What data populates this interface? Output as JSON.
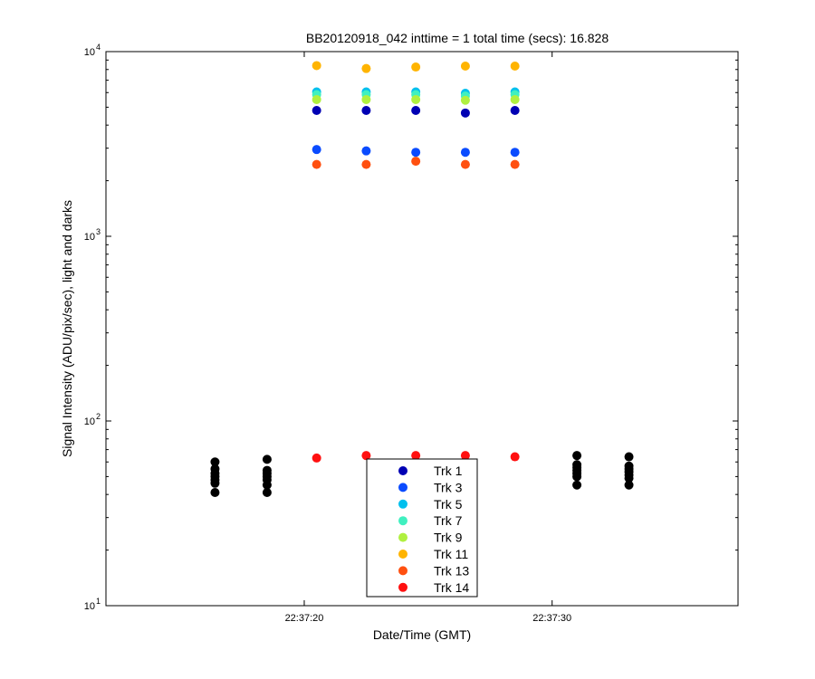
{
  "chart_data": {
    "type": "scatter",
    "title": "BB20120918_042 inttime = 1 total time (secs): 16.828",
    "xlabel": "Date/Time (GMT)",
    "ylabel": "Signal Intensity (ADU/pix/sec), light and darks",
    "yscale": "log",
    "ylim": [
      10,
      10000
    ],
    "xlim": [
      "22:37:12.0",
      "22:37:37.5"
    ],
    "x_ticks": [
      "22:37:20",
      "22:37:30"
    ],
    "y_ticks": [
      {
        "base": "10",
        "exp": "1",
        "value": 10
      },
      {
        "base": "10",
        "exp": "2",
        "value": 100
      },
      {
        "base": "10",
        "exp": "3",
        "value": 1000
      },
      {
        "base": "10",
        "exp": "4",
        "value": 10000
      }
    ],
    "grid": false,
    "legend_position": "bottom-center",
    "series": [
      {
        "name": "Trk 1",
        "color": "#0000b4",
        "x": [
          "22:37:20.5",
          "22:37:22.5",
          "22:37:24.5",
          "22:37:26.5",
          "22:37:28.5"
        ],
        "y": [
          4800,
          4800,
          4800,
          4650,
          4800
        ]
      },
      {
        "name": "Trk 3",
        "color": "#0a4bff",
        "x": [
          "22:37:20.5",
          "22:37:22.5",
          "22:37:24.5",
          "22:37:26.5",
          "22:37:28.5"
        ],
        "y": [
          2950,
          2900,
          2850,
          2850,
          2850
        ]
      },
      {
        "name": "Trk 5",
        "color": "#00c0ee",
        "x": [
          "22:37:20.5",
          "22:37:22.5",
          "22:37:24.5",
          "22:37:26.5",
          "22:37:28.5"
        ],
        "y": [
          6050,
          6050,
          6050,
          5950,
          6050
        ]
      },
      {
        "name": "Trk 7",
        "color": "#40f0c0",
        "x": [
          "22:37:20.5",
          "22:37:22.5",
          "22:37:24.5",
          "22:37:26.5",
          "22:37:28.5"
        ],
        "y": [
          5850,
          5850,
          5850,
          5750,
          5850
        ]
      },
      {
        "name": "Trk 9",
        "color": "#b0f040",
        "x": [
          "22:37:20.5",
          "22:37:22.5",
          "22:37:24.5",
          "22:37:26.5",
          "22:37:28.5"
        ],
        "y": [
          5500,
          5500,
          5500,
          5450,
          5500
        ]
      },
      {
        "name": "Trk 11",
        "color": "#ffb400",
        "x": [
          "22:37:20.5",
          "22:37:22.5",
          "22:37:24.5",
          "22:37:26.5",
          "22:37:28.5"
        ],
        "y": [
          8400,
          8100,
          8250,
          8350,
          8350
        ]
      },
      {
        "name": "Trk 13",
        "color": "#ff5010",
        "x": [
          "22:37:20.5",
          "22:37:22.5",
          "22:37:24.5",
          "22:37:26.5",
          "22:37:28.5"
        ],
        "y": [
          2450,
          2450,
          2550,
          2450,
          2450
        ]
      },
      {
        "name": "Trk 14",
        "color": "#ff1010",
        "x": [
          "22:37:20.5",
          "22:37:22.5",
          "22:37:24.5",
          "22:37:26.5",
          "22:37:28.5"
        ],
        "y": [
          63,
          65,
          65,
          65,
          64
        ]
      }
    ],
    "darks": {
      "color": "#000000",
      "x": [
        "22:37:16.4",
        "22:37:16.4",
        "22:37:16.4",
        "22:37:16.4",
        "22:37:16.4",
        "22:37:16.4",
        "22:37:16.4",
        "22:37:18.5",
        "22:37:18.5",
        "22:37:18.5",
        "22:37:18.5",
        "22:37:18.5",
        "22:37:18.5",
        "22:37:18.5",
        "22:37:31.0",
        "22:37:31.0",
        "22:37:31.0",
        "22:37:31.0",
        "22:37:31.0",
        "22:37:31.0",
        "22:37:31.0",
        "22:37:33.1",
        "22:37:33.1",
        "22:37:33.1",
        "22:37:33.1",
        "22:37:33.1",
        "22:37:33.1",
        "22:37:33.1"
      ],
      "y": [
        41,
        46,
        48,
        50,
        52,
        55,
        60,
        41,
        45,
        48,
        50,
        52,
        54,
        62,
        45,
        50,
        52,
        54,
        56,
        58,
        65,
        45,
        49,
        51,
        53,
        55,
        57,
        64
      ]
    }
  }
}
